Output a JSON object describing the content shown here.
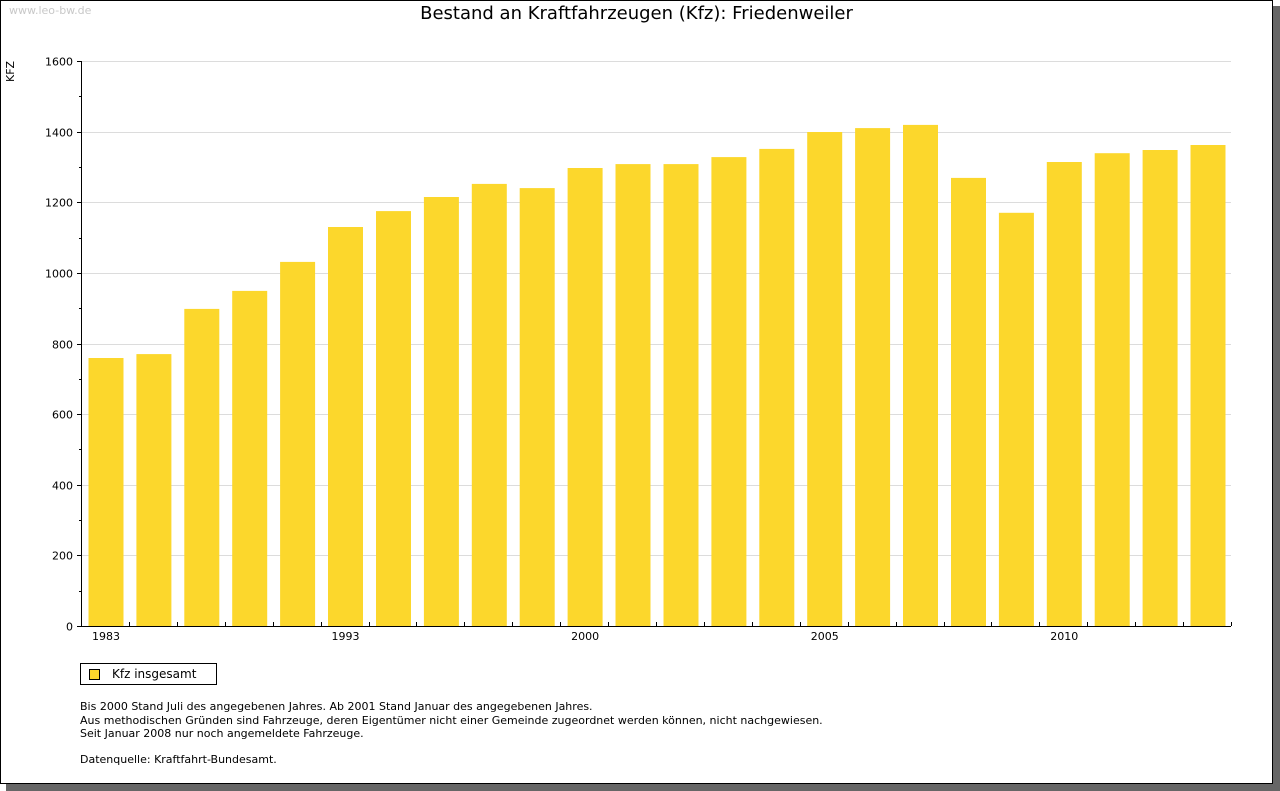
{
  "watermark": "www.leo-bw.de",
  "chart_data": {
    "type": "bar",
    "title": "Bestand an Kraftfahrzeugen (Kfz): Friedenweiler",
    "xlabel": "",
    "ylabel": "KFZ",
    "ylim": [
      0,
      1600
    ],
    "yticks": [
      0,
      200,
      400,
      600,
      800,
      1000,
      1200,
      1400,
      1600
    ],
    "grid": true,
    "categories": [
      "1983",
      "",
      "",
      "",
      "",
      "1993",
      "",
      "",
      "",
      "",
      "2000",
      "",
      "",
      "",
      "",
      "2005",
      "",
      "",
      "",
      "",
      "2010",
      "",
      "",
      ""
    ],
    "series": [
      {
        "name": "Kfz insgesamt",
        "color": "#fcd72c",
        "values": [
          759,
          770,
          898,
          949,
          1031,
          1130,
          1175,
          1215,
          1252,
          1240,
          1297,
          1308,
          1308,
          1328,
          1351,
          1399,
          1410,
          1419,
          1269,
          1170,
          1314,
          1339,
          1348,
          1362
        ]
      }
    ],
    "legend": "bottom-left"
  },
  "notes": [
    "Bis 2000 Stand Juli des angegebenen Jahres. Ab 2001 Stand Januar des angegebenen Jahres.",
    "Aus methodischen Gründen sind Fahrzeuge, deren Eigentümer nicht einer Gemeinde zugeordnet werden können, nicht nachgewiesen.",
    "Seit Januar 2008 nur noch angemeldete Fahrzeuge."
  ],
  "source": "Datenquelle: Kraftfahrt-Bundesamt."
}
